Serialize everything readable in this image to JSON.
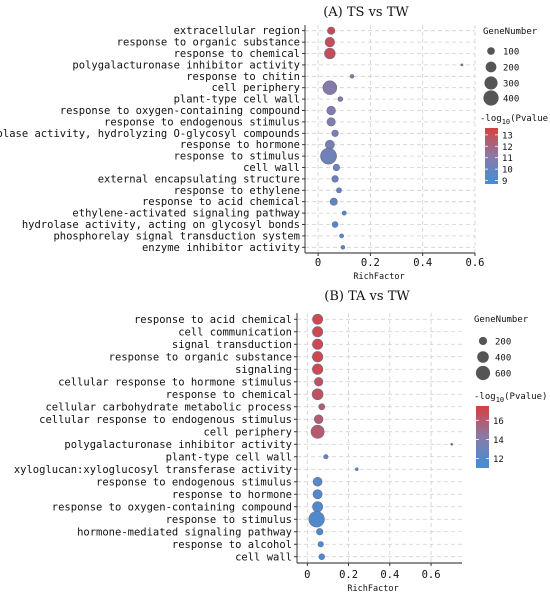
{
  "chart_data": [
    {
      "type": "scatter",
      "title": "(A) TS vs TW",
      "xlabel": "RichFactor",
      "xlim": [
        -0.05,
        0.6
      ],
      "xticks": [
        "0",
        "0.2",
        "0.4",
        "0.6"
      ],
      "xtick_values": [
        0,
        0.2,
        0.4,
        0.6
      ],
      "categories": [
        "extracellular region",
        "response to organic substance",
        "response to chemical",
        "polygalacturonase inhibitor activity",
        "response to chitin",
        "cell periphery",
        "plant-type cell wall",
        "response to oxygen-containing compound",
        "response to endogenous stimulus",
        "hydrolase activity, hydrolyzing O-glycosyl compounds",
        "response to hormone",
        "response to stimulus",
        "cell wall",
        "external encapsulating structure",
        "response to ethylene",
        "response to acid chemical",
        "ethylene-activated signaling pathway",
        "hydrolase activity, acting on glycosyl bonds",
        "phosphorelay signal transduction system",
        "enzyme inhibitor activity"
      ],
      "richfactor": [
        0.05,
        0.045,
        0.045,
        0.55,
        0.13,
        0.045,
        0.085,
        0.05,
        0.05,
        0.065,
        0.045,
        0.04,
        0.07,
        0.065,
        0.08,
        0.06,
        0.1,
        0.065,
        0.09,
        0.095
      ],
      "gene_number": [
        95,
        160,
        200,
        8,
        25,
        330,
        40,
        130,
        120,
        75,
        140,
        440,
        75,
        75,
        45,
        90,
        30,
        60,
        28,
        25
      ],
      "neg_log10_pvalue": [
        13.2,
        13.0,
        13.0,
        12.5,
        11.5,
        11.0,
        11.0,
        10.8,
        10.8,
        10.5,
        10.5,
        10.3,
        10.0,
        10.0,
        9.8,
        9.7,
        9.3,
        9.3,
        9.2,
        9.0
      ],
      "size_legend": {
        "title": "GeneNumber",
        "values": [
          100,
          200,
          300,
          400
        ],
        "labels": [
          "100",
          "200",
          "300",
          "400"
        ]
      },
      "color_legend": {
        "title_prefix": "-log",
        "title_sub": "10",
        "title_suffix": "(Pvalue)",
        "range": [
          8.7,
          13.6
        ],
        "ticks": [
          9,
          10,
          11,
          12,
          13
        ],
        "tick_labels": [
          "9",
          "10",
          "11",
          "12",
          "13"
        ]
      }
    },
    {
      "type": "scatter",
      "title": "(B) TA vs TW",
      "xlabel": "RichFactor",
      "xlim": [
        -0.05,
        0.75
      ],
      "xticks": [
        "0",
        "0.2",
        "0.4",
        "0.6"
      ],
      "xtick_values": [
        0,
        0.2,
        0.4,
        0.6
      ],
      "categories": [
        "response to acid chemical",
        "cell communication",
        "signal transduction",
        "response to organic substance",
        "signaling",
        "cellular response to hormone stimulus",
        "response to chemical",
        "cellular carbohydrate metabolic process",
        "cellular response to endogenous stimulus",
        "cell periphery",
        "polygalacturonase inhibitor activity",
        "plant-type cell wall",
        "xyloglucan:xyloglucosyl transferase activity",
        "response to endogenous stimulus",
        "response to hormone",
        "response to oxygen-containing compound",
        "response to stimulus",
        "hormone-mediated signaling pathway",
        "response to alcohol",
        "cell wall"
      ],
      "richfactor": [
        0.05,
        0.05,
        0.05,
        0.05,
        0.05,
        0.055,
        0.05,
        0.07,
        0.055,
        0.05,
        0.7,
        0.09,
        0.24,
        0.05,
        0.05,
        0.05,
        0.045,
        0.06,
        0.065,
        0.07
      ],
      "gene_number": [
        310,
        320,
        320,
        330,
        330,
        220,
        360,
        110,
        230,
        520,
        12,
        60,
        25,
        240,
        250,
        310,
        720,
        130,
        90,
        100
      ],
      "neg_log10_pvalue": [
        17.0,
        17.0,
        17.0,
        17.0,
        17.0,
        16.5,
        16.5,
        16.0,
        16.0,
        16.0,
        16.0,
        12.5,
        12.0,
        12.0,
        11.8,
        11.8,
        11.8,
        11.8,
        11.5,
        11.5
      ],
      "size_legend": {
        "title": "GeneNumber",
        "values": [
          200,
          400,
          600
        ],
        "labels": [
          "200",
          "400",
          "600"
        ]
      },
      "color_legend": {
        "title_prefix": "-log",
        "title_sub": "10",
        "title_suffix": "(Pvalue)",
        "range": [
          11.0,
          17.5
        ],
        "ticks": [
          12,
          14,
          16
        ],
        "tick_labels": [
          "12",
          "14",
          "16"
        ]
      }
    }
  ],
  "colors": {
    "high": "#d7403f",
    "mid": "#8a7aa6",
    "low": "#3f8fd8"
  }
}
